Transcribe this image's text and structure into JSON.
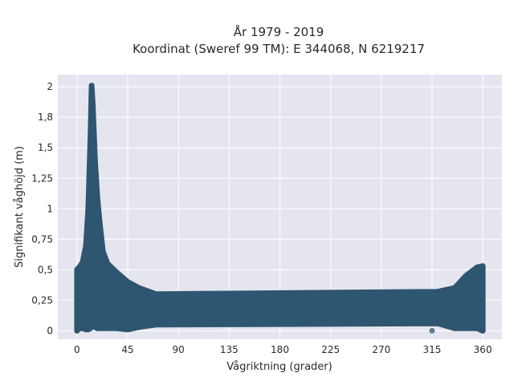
{
  "chart_data": {
    "type": "scatter",
    "title_line1": "År 1979 - 2019",
    "title_line2": "Koordinat (Sweref 99 TM): E 344068, N 6219217",
    "xlabel": "Vågriktning (grader)",
    "ylabel": "Signifikant våghöjd (m)",
    "xlim": [
      -17,
      377
    ],
    "ylim": [
      -0.07,
      2.1
    ],
    "x_ticks": [
      0,
      45,
      90,
      135,
      180,
      225,
      270,
      315,
      360
    ],
    "x_tick_labels": [
      "0",
      "45",
      "90",
      "135",
      "180",
      "225",
      "270",
      "315",
      "360"
    ],
    "y_ticks": [
      0,
      0.25,
      0.5,
      0.75,
      1,
      1.25,
      1.5,
      1.75,
      2
    ],
    "y_tick_labels": [
      "0",
      "0,25",
      "0,5",
      "0,75",
      "1",
      "1,25",
      "1,5",
      "1,8",
      "2"
    ],
    "grid": true,
    "background": "#e5e5ef",
    "marker_color": "#2f5670",
    "series": [
      {
        "points": [
          [
            0,
            0.0
          ],
          [
            0,
            0.5
          ],
          [
            2,
            0.02
          ],
          [
            2,
            0.52
          ],
          [
            5,
            0.02
          ],
          [
            5,
            0.56
          ],
          [
            8,
            0.01
          ],
          [
            8,
            0.7
          ],
          [
            10,
            0.01
          ],
          [
            10,
            1.0
          ],
          [
            12,
            0.02
          ],
          [
            12,
            1.6
          ],
          [
            13,
            0.05
          ],
          [
            13,
            2.01
          ],
          [
            14,
            0.05
          ],
          [
            14,
            1.85
          ],
          [
            16,
            0.03
          ],
          [
            16,
            1.4
          ],
          [
            18,
            0.02
          ],
          [
            18,
            1.1
          ],
          [
            20,
            0.02
          ],
          [
            20,
            0.9
          ],
          [
            23,
            0.02
          ],
          [
            23,
            0.65
          ],
          [
            27,
            0.02
          ],
          [
            27,
            0.55
          ],
          [
            35,
            0.02
          ],
          [
            35,
            0.48
          ],
          [
            45,
            0.01
          ],
          [
            45,
            0.4
          ],
          [
            55,
            0.03
          ],
          [
            55,
            0.35
          ],
          [
            70,
            0.05
          ],
          [
            70,
            0.3
          ],
          [
            90,
            0.1
          ],
          [
            90,
            0.27
          ],
          [
            135,
            0.12
          ],
          [
            135,
            0.25
          ],
          [
            180,
            0.13
          ],
          [
            180,
            0.24
          ],
          [
            225,
            0.13
          ],
          [
            225,
            0.24
          ],
          [
            270,
            0.12
          ],
          [
            270,
            0.25
          ],
          [
            300,
            0.12
          ],
          [
            300,
            0.28
          ],
          [
            320,
            0.06
          ],
          [
            320,
            0.32
          ],
          [
            335,
            0.02
          ],
          [
            335,
            0.35
          ],
          [
            345,
            0.02
          ],
          [
            345,
            0.45
          ],
          [
            355,
            0.02
          ],
          [
            355,
            0.52
          ],
          [
            360,
            0.0
          ],
          [
            360,
            0.53
          ],
          [
            6,
            0.3
          ],
          [
            15,
            0.9
          ],
          [
            19,
            0.6
          ],
          [
            30,
            0.35
          ],
          [
            40,
            0.2
          ],
          [
            60,
            0.22
          ],
          [
            100,
            0.18
          ],
          [
            150,
            0.2
          ],
          [
            200,
            0.21
          ],
          [
            250,
            0.2
          ],
          [
            330,
            0.15
          ],
          [
            350,
            0.2
          ],
          [
            32,
            0.05
          ],
          [
            40,
            0.35
          ],
          [
            58,
            0.34
          ],
          [
            75,
            0.08
          ],
          [
            98,
            0.18
          ],
          [
            110,
            0.25
          ],
          [
            142,
            0.22
          ],
          [
            183,
            0.24
          ],
          [
            265,
            0.07
          ],
          [
            275,
            0.24
          ],
          [
            315,
            0.0
          ],
          [
            325,
            0.05
          ],
          [
            338,
            0.28
          ],
          [
            348,
            0.05
          ],
          [
            353,
            0.4
          ],
          [
            356,
            0.5
          ],
          [
            358,
            0.45
          ]
        ]
      }
    ]
  }
}
